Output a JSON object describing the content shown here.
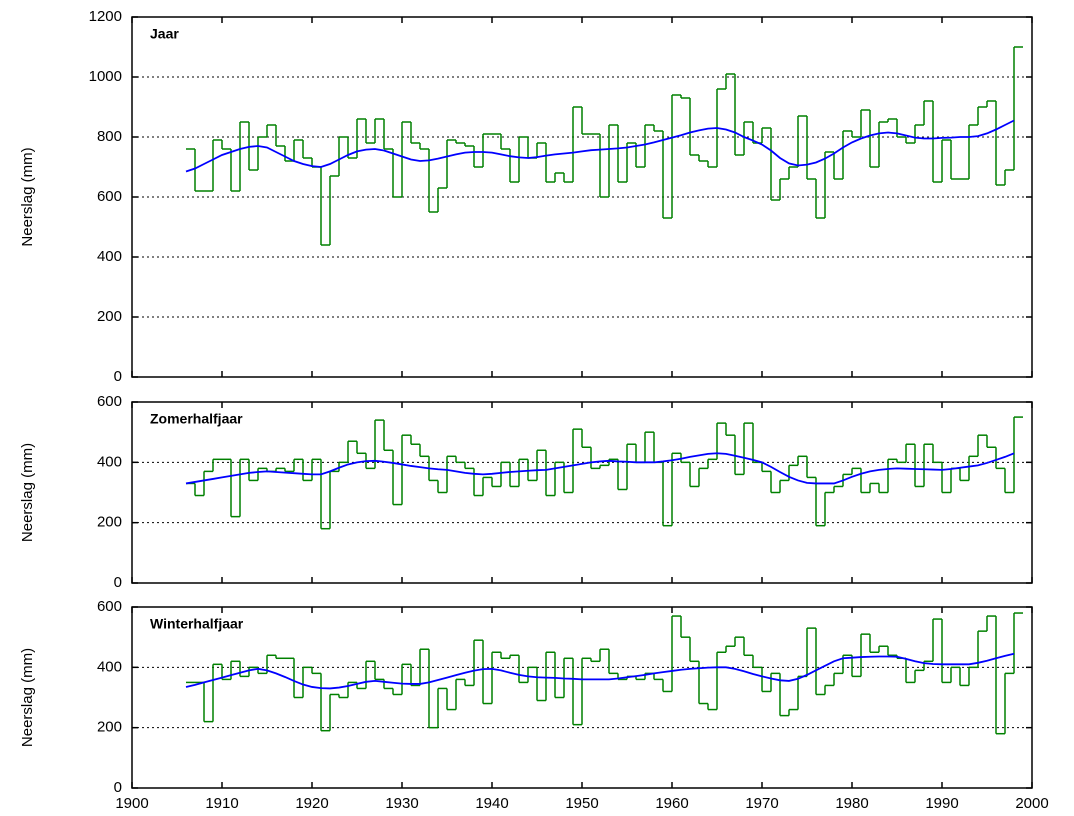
{
  "chart_data": [
    {
      "type": "step-line",
      "title": "Jaar",
      "ylabel": "Neerslag (mm)",
      "x": [
        1906,
        1907,
        1908,
        1909,
        1910,
        1911,
        1912,
        1913,
        1914,
        1915,
        1916,
        1917,
        1918,
        1919,
        1920,
        1921,
        1922,
        1923,
        1924,
        1925,
        1926,
        1927,
        1928,
        1929,
        1930,
        1931,
        1932,
        1933,
        1934,
        1935,
        1936,
        1937,
        1938,
        1939,
        1940,
        1941,
        1942,
        1943,
        1944,
        1945,
        1946,
        1947,
        1948,
        1949,
        1950,
        1951,
        1952,
        1953,
        1954,
        1955,
        1956,
        1957,
        1958,
        1959,
        1960,
        1961,
        1962,
        1963,
        1964,
        1965,
        1966,
        1967,
        1968,
        1969,
        1970,
        1971,
        1972,
        1973,
        1974,
        1975,
        1976,
        1977,
        1978,
        1979,
        1980,
        1981,
        1982,
        1983,
        1984,
        1985,
        1986,
        1987,
        1988,
        1989,
        1990,
        1991,
        1992,
        1993,
        1994,
        1995,
        1996,
        1997,
        1998
      ],
      "series": [
        {
          "color": "#008000",
          "steps": true,
          "values": [
            760,
            620,
            620,
            790,
            760,
            620,
            850,
            690,
            800,
            840,
            770,
            720,
            790,
            730,
            700,
            440,
            670,
            800,
            730,
            860,
            780,
            860,
            760,
            600,
            850,
            780,
            760,
            550,
            630,
            790,
            780,
            770,
            700,
            810,
            810,
            760,
            650,
            800,
            730,
            780,
            650,
            680,
            650,
            900,
            810,
            810,
            600,
            840,
            650,
            780,
            700,
            840,
            820,
            530,
            940,
            930,
            740,
            720,
            700,
            960,
            1010,
            740,
            850,
            780,
            830,
            590,
            660,
            700,
            870,
            660,
            530,
            750,
            660,
            820,
            800,
            890,
            700,
            850,
            860,
            800,
            780,
            840,
            920,
            650,
            790,
            660,
            660,
            840,
            900,
            920,
            640,
            690,
            1100
          ]
        },
        {
          "color": "#0000ff",
          "steps": false,
          "values": [
            685,
            695,
            710,
            725,
            740,
            750,
            760,
            767,
            770,
            765,
            750,
            735,
            720,
            710,
            703,
            700,
            710,
            725,
            740,
            752,
            758,
            760,
            755,
            745,
            735,
            725,
            720,
            722,
            728,
            735,
            742,
            748,
            750,
            750,
            748,
            742,
            736,
            732,
            730,
            733,
            738,
            742,
            745,
            748,
            752,
            756,
            758,
            760,
            762,
            765,
            770,
            775,
            782,
            790,
            798,
            806,
            815,
            822,
            828,
            830,
            825,
            815,
            800,
            788,
            775,
            755,
            730,
            712,
            705,
            708,
            715,
            728,
            745,
            765,
            782,
            795,
            805,
            812,
            815,
            812,
            805,
            798,
            795,
            795,
            797,
            798,
            800,
            800,
            803,
            812,
            825,
            840,
            855
          ]
        }
      ],
      "xlim": [
        1900,
        2000
      ],
      "xticks": [
        1900,
        1910,
        1920,
        1930,
        1940,
        1950,
        1960,
        1970,
        1980,
        1990,
        2000
      ],
      "xtick_labels": false,
      "ylim": [
        0,
        1200
      ],
      "yticks": [
        0,
        200,
        400,
        600,
        800,
        1000,
        1200
      ],
      "grid": "y"
    },
    {
      "type": "step-line",
      "title": "Zomerhalfjaar",
      "ylabel": "Neerslag (mm)",
      "x": [
        1906,
        1907,
        1908,
        1909,
        1910,
        1911,
        1912,
        1913,
        1914,
        1915,
        1916,
        1917,
        1918,
        1919,
        1920,
        1921,
        1922,
        1923,
        1924,
        1925,
        1926,
        1927,
        1928,
        1929,
        1930,
        1931,
        1932,
        1933,
        1934,
        1935,
        1936,
        1937,
        1938,
        1939,
        1940,
        1941,
        1942,
        1943,
        1944,
        1945,
        1946,
        1947,
        1948,
        1949,
        1950,
        1951,
        1952,
        1953,
        1954,
        1955,
        1956,
        1957,
        1958,
        1959,
        1960,
        1961,
        1962,
        1963,
        1964,
        1965,
        1966,
        1967,
        1968,
        1969,
        1970,
        1971,
        1972,
        1973,
        1974,
        1975,
        1976,
        1977,
        1978,
        1979,
        1980,
        1981,
        1982,
        1983,
        1984,
        1985,
        1986,
        1987,
        1988,
        1989,
        1990,
        1991,
        1992,
        1993,
        1994,
        1995,
        1996,
        1997,
        1998
      ],
      "series": [
        {
          "color": "#008000",
          "steps": true,
          "values": [
            330,
            290,
            370,
            410,
            410,
            220,
            410,
            340,
            380,
            370,
            380,
            370,
            410,
            340,
            410,
            180,
            370,
            400,
            470,
            430,
            380,
            540,
            440,
            260,
            490,
            460,
            420,
            340,
            300,
            420,
            400,
            380,
            290,
            350,
            320,
            400,
            320,
            410,
            340,
            440,
            290,
            400,
            300,
            510,
            450,
            380,
            390,
            410,
            310,
            460,
            400,
            500,
            400,
            190,
            430,
            400,
            320,
            380,
            410,
            530,
            490,
            360,
            530,
            400,
            370,
            300,
            340,
            390,
            420,
            350,
            190,
            300,
            320,
            360,
            380,
            300,
            330,
            300,
            410,
            400,
            460,
            320,
            460,
            400,
            300,
            380,
            340,
            420,
            490,
            450,
            380,
            300,
            550
          ]
        },
        {
          "color": "#0000ff",
          "steps": false,
          "values": [
            330,
            335,
            340,
            345,
            350,
            355,
            360,
            365,
            368,
            370,
            368,
            366,
            364,
            362,
            360,
            360,
            370,
            382,
            393,
            400,
            404,
            405,
            402,
            398,
            393,
            388,
            384,
            380,
            377,
            375,
            370,
            365,
            362,
            360,
            362,
            365,
            368,
            370,
            372,
            374,
            375,
            380,
            385,
            390,
            395,
            400,
            403,
            405,
            403,
            402,
            400,
            400,
            400,
            403,
            407,
            412,
            418,
            423,
            428,
            430,
            428,
            422,
            415,
            408,
            400,
            385,
            368,
            352,
            340,
            332,
            330,
            330,
            330,
            340,
            352,
            362,
            370,
            375,
            378,
            380,
            379,
            378,
            377,
            376,
            375,
            378,
            382,
            386,
            390,
            398,
            408,
            418,
            430
          ]
        }
      ],
      "xlim": [
        1900,
        2000
      ],
      "xticks": [
        1900,
        1910,
        1920,
        1930,
        1940,
        1950,
        1960,
        1970,
        1980,
        1990,
        2000
      ],
      "xtick_labels": false,
      "ylim": [
        0,
        600
      ],
      "yticks": [
        0,
        200,
        400,
        600
      ],
      "grid": "y"
    },
    {
      "type": "step-line",
      "title": "Winterhalfjaar",
      "ylabel": "Neerslag (mm)",
      "x": [
        1906,
        1907,
        1908,
        1909,
        1910,
        1911,
        1912,
        1913,
        1914,
        1915,
        1916,
        1917,
        1918,
        1919,
        1920,
        1921,
        1922,
        1923,
        1924,
        1925,
        1926,
        1927,
        1928,
        1929,
        1930,
        1931,
        1932,
        1933,
        1934,
        1935,
        1936,
        1937,
        1938,
        1939,
        1940,
        1941,
        1942,
        1943,
        1944,
        1945,
        1946,
        1947,
        1948,
        1949,
        1950,
        1951,
        1952,
        1953,
        1954,
        1955,
        1956,
        1957,
        1958,
        1959,
        1960,
        1961,
        1962,
        1963,
        1964,
        1965,
        1966,
        1967,
        1968,
        1969,
        1970,
        1971,
        1972,
        1973,
        1974,
        1975,
        1976,
        1977,
        1978,
        1979,
        1980,
        1981,
        1982,
        1983,
        1984,
        1985,
        1986,
        1987,
        1988,
        1989,
        1990,
        1991,
        1992,
        1993,
        1994,
        1995,
        1996,
        1997,
        1998
      ],
      "series": [
        {
          "color": "#008000",
          "steps": true,
          "values": [
            350,
            350,
            220,
            410,
            360,
            420,
            370,
            400,
            380,
            440,
            430,
            430,
            300,
            400,
            380,
            190,
            310,
            300,
            350,
            330,
            420,
            360,
            330,
            310,
            410,
            340,
            460,
            200,
            330,
            260,
            360,
            340,
            490,
            280,
            450,
            430,
            440,
            350,
            400,
            290,
            450,
            300,
            430,
            210,
            430,
            420,
            460,
            380,
            360,
            370,
            360,
            380,
            360,
            320,
            570,
            500,
            420,
            280,
            260,
            450,
            470,
            500,
            440,
            400,
            320,
            380,
            240,
            260,
            370,
            530,
            310,
            340,
            380,
            440,
            370,
            510,
            450,
            470,
            440,
            430,
            350,
            390,
            420,
            560,
            350,
            400,
            340,
            400,
            520,
            570,
            180,
            380,
            580
          ]
        },
        {
          "color": "#0000ff",
          "steps": false,
          "values": [
            335,
            342,
            350,
            358,
            366,
            374,
            382,
            390,
            395,
            390,
            380,
            368,
            355,
            343,
            335,
            331,
            330,
            333,
            338,
            345,
            352,
            355,
            352,
            349,
            346,
            345,
            345,
            350,
            358,
            366,
            374,
            382,
            389,
            394,
            395,
            390,
            382,
            375,
            370,
            367,
            366,
            365,
            363,
            362,
            360,
            360,
            360,
            360,
            363,
            367,
            371,
            375,
            380,
            384,
            388,
            392,
            395,
            397,
            399,
            400,
            400,
            395,
            387,
            378,
            370,
            363,
            357,
            355,
            362,
            375,
            390,
            405,
            420,
            430,
            432,
            434,
            435,
            436,
            436,
            435,
            428,
            420,
            414,
            411,
            410,
            410,
            410,
            410,
            415,
            422,
            430,
            438,
            445
          ]
        }
      ],
      "xlim": [
        1900,
        2000
      ],
      "xticks": [
        1900,
        1910,
        1920,
        1930,
        1940,
        1950,
        1960,
        1970,
        1980,
        1990,
        2000
      ],
      "xtick_labels": true,
      "ylim": [
        0,
        600
      ],
      "yticks": [
        0,
        200,
        400,
        600
      ],
      "grid": "y"
    }
  ]
}
